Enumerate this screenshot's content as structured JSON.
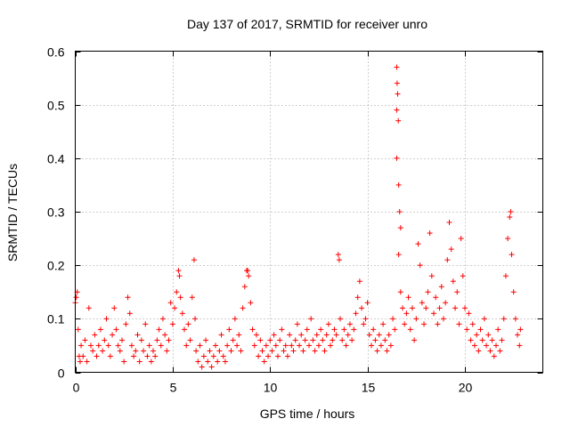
{
  "chart_data": {
    "type": "scatter",
    "title": "Day 137 of 2017, SRMTID for receiver unro",
    "xlabel": "GPS time / hours",
    "ylabel": "SRMTID / TECUs",
    "xlim": [
      0,
      24
    ],
    "ylim": [
      0,
      0.6
    ],
    "grid": true,
    "marker": "plus",
    "marker_color": "#ff0000",
    "x_ticks": [
      0,
      5,
      10,
      15,
      20
    ],
    "x_tick_labels": [
      "0",
      "5",
      "10",
      "15",
      "20"
    ],
    "y_ticks": [
      0,
      0.1,
      0.2,
      0.3,
      0.4,
      0.5,
      0.6
    ],
    "y_tick_labels": [
      "0",
      "0.1",
      "0.2",
      "0.3",
      "0.4",
      "0.5",
      "0.6"
    ],
    "series": [
      {
        "name": "SRMTID",
        "points": [
          [
            0.0,
            0.13
          ],
          [
            0.05,
            0.14
          ],
          [
            0.1,
            0.15
          ],
          [
            0.15,
            0.08
          ],
          [
            0.2,
            0.03
          ],
          [
            0.25,
            0.02
          ],
          [
            0.3,
            0.05
          ],
          [
            0.4,
            0.03
          ],
          [
            0.5,
            0.06
          ],
          [
            0.6,
            0.02
          ],
          [
            0.7,
            0.12
          ],
          [
            0.8,
            0.05
          ],
          [
            0.9,
            0.04
          ],
          [
            1.0,
            0.07
          ],
          [
            1.1,
            0.03
          ],
          [
            1.2,
            0.05
          ],
          [
            1.3,
            0.08
          ],
          [
            1.4,
            0.04
          ],
          [
            1.5,
            0.06
          ],
          [
            1.6,
            0.1
          ],
          [
            1.7,
            0.05
          ],
          [
            1.8,
            0.03
          ],
          [
            1.9,
            0.07
          ],
          [
            2.0,
            0.12
          ],
          [
            2.1,
            0.08
          ],
          [
            2.2,
            0.05
          ],
          [
            2.3,
            0.04
          ],
          [
            2.4,
            0.06
          ],
          [
            2.5,
            0.02
          ],
          [
            2.6,
            0.09
          ],
          [
            2.7,
            0.14
          ],
          [
            2.8,
            0.11
          ],
          [
            2.9,
            0.05
          ],
          [
            3.0,
            0.03
          ],
          [
            3.1,
            0.04
          ],
          [
            3.2,
            0.07
          ],
          [
            3.3,
            0.02
          ],
          [
            3.4,
            0.06
          ],
          [
            3.5,
            0.04
          ],
          [
            3.6,
            0.09
          ],
          [
            3.7,
            0.03
          ],
          [
            3.8,
            0.05
          ],
          [
            3.9,
            0.02
          ],
          [
            4.0,
            0.04
          ],
          [
            4.1,
            0.03
          ],
          [
            4.2,
            0.06
          ],
          [
            4.3,
            0.08
          ],
          [
            4.4,
            0.05
          ],
          [
            4.5,
            0.1
          ],
          [
            4.6,
            0.07
          ],
          [
            4.7,
            0.04
          ],
          [
            4.8,
            0.06
          ],
          [
            4.9,
            0.13
          ],
          [
            5.0,
            0.09
          ],
          [
            5.1,
            0.12
          ],
          [
            5.2,
            0.15
          ],
          [
            5.3,
            0.19
          ],
          [
            5.35,
            0.18
          ],
          [
            5.4,
            0.14
          ],
          [
            5.5,
            0.11
          ],
          [
            5.6,
            0.08
          ],
          [
            5.7,
            0.05
          ],
          [
            5.8,
            0.09
          ],
          [
            5.9,
            0.06
          ],
          [
            6.0,
            0.14
          ],
          [
            6.1,
            0.21
          ],
          [
            6.15,
            0.1
          ],
          [
            6.2,
            0.04
          ],
          [
            6.3,
            0.02
          ],
          [
            6.4,
            0.05
          ],
          [
            6.5,
            0.01
          ],
          [
            6.6,
            0.03
          ],
          [
            6.7,
            0.06
          ],
          [
            6.8,
            0.02
          ],
          [
            6.9,
            0.04
          ],
          [
            7.0,
            0.01
          ],
          [
            7.1,
            0.03
          ],
          [
            7.2,
            0.05
          ],
          [
            7.3,
            0.02
          ],
          [
            7.4,
            0.04
          ],
          [
            7.5,
            0.07
          ],
          [
            7.6,
            0.03
          ],
          [
            7.7,
            0.02
          ],
          [
            7.8,
            0.05
          ],
          [
            7.9,
            0.08
          ],
          [
            8.0,
            0.04
          ],
          [
            8.1,
            0.06
          ],
          [
            8.2,
            0.1
          ],
          [
            8.3,
            0.05
          ],
          [
            8.4,
            0.07
          ],
          [
            8.5,
            0.04
          ],
          [
            8.6,
            0.12
          ],
          [
            8.7,
            0.16
          ],
          [
            8.8,
            0.19
          ],
          [
            8.85,
            0.19
          ],
          [
            8.9,
            0.18
          ],
          [
            9.0,
            0.13
          ],
          [
            9.1,
            0.08
          ],
          [
            9.2,
            0.05
          ],
          [
            9.3,
            0.07
          ],
          [
            9.4,
            0.03
          ],
          [
            9.5,
            0.06
          ],
          [
            9.6,
            0.04
          ],
          [
            9.7,
            0.02
          ],
          [
            9.8,
            0.05
          ],
          [
            9.9,
            0.03
          ],
          [
            10.0,
            0.06
          ],
          [
            10.1,
            0.04
          ],
          [
            10.2,
            0.07
          ],
          [
            10.3,
            0.05
          ],
          [
            10.4,
            0.03
          ],
          [
            10.5,
            0.06
          ],
          [
            10.6,
            0.08
          ],
          [
            10.7,
            0.04
          ],
          [
            10.8,
            0.05
          ],
          [
            10.9,
            0.03
          ],
          [
            11.0,
            0.07
          ],
          [
            11.1,
            0.05
          ],
          [
            11.2,
            0.04
          ],
          [
            11.3,
            0.06
          ],
          [
            11.4,
            0.09
          ],
          [
            11.5,
            0.05
          ],
          [
            11.6,
            0.07
          ],
          [
            11.7,
            0.04
          ],
          [
            11.8,
            0.06
          ],
          [
            11.9,
            0.08
          ],
          [
            12.0,
            0.05
          ],
          [
            12.1,
            0.1
          ],
          [
            12.2,
            0.06
          ],
          [
            12.3,
            0.04
          ],
          [
            12.4,
            0.07
          ],
          [
            12.5,
            0.05
          ],
          [
            12.6,
            0.08
          ],
          [
            12.7,
            0.06
          ],
          [
            12.8,
            0.04
          ],
          [
            12.9,
            0.07
          ],
          [
            13.0,
            0.09
          ],
          [
            13.1,
            0.05
          ],
          [
            13.2,
            0.06
          ],
          [
            13.3,
            0.08
          ],
          [
            13.4,
            0.07
          ],
          [
            13.5,
            0.22
          ],
          [
            13.55,
            0.21
          ],
          [
            13.6,
            0.1
          ],
          [
            13.7,
            0.06
          ],
          [
            13.8,
            0.08
          ],
          [
            13.9,
            0.05
          ],
          [
            14.0,
            0.07
          ],
          [
            14.1,
            0.09
          ],
          [
            14.2,
            0.06
          ],
          [
            14.3,
            0.08
          ],
          [
            14.4,
            0.11
          ],
          [
            14.5,
            0.14
          ],
          [
            14.6,
            0.17
          ],
          [
            14.7,
            0.12
          ],
          [
            14.8,
            0.09
          ],
          [
            14.9,
            0.1
          ],
          [
            15.0,
            0.13
          ],
          [
            15.1,
            0.07
          ],
          [
            15.2,
            0.05
          ],
          [
            15.3,
            0.08
          ],
          [
            15.4,
            0.06
          ],
          [
            15.5,
            0.04
          ],
          [
            15.6,
            0.07
          ],
          [
            15.7,
            0.05
          ],
          [
            15.8,
            0.09
          ],
          [
            15.9,
            0.06
          ],
          [
            16.0,
            0.04
          ],
          [
            16.1,
            0.07
          ],
          [
            16.2,
            0.05
          ],
          [
            16.3,
            0.1
          ],
          [
            16.4,
            0.08
          ],
          [
            16.5,
            0.57
          ],
          [
            16.52,
            0.54
          ],
          [
            16.55,
            0.52
          ],
          [
            16.5,
            0.49
          ],
          [
            16.58,
            0.47
          ],
          [
            16.5,
            0.4
          ],
          [
            16.6,
            0.35
          ],
          [
            16.65,
            0.3
          ],
          [
            16.7,
            0.27
          ],
          [
            16.6,
            0.22
          ],
          [
            16.7,
            0.15
          ],
          [
            16.8,
            0.12
          ],
          [
            16.9,
            0.09
          ],
          [
            17.0,
            0.11
          ],
          [
            17.1,
            0.14
          ],
          [
            17.2,
            0.08
          ],
          [
            17.3,
            0.12
          ],
          [
            17.4,
            0.06
          ],
          [
            17.5,
            0.1
          ],
          [
            17.6,
            0.24
          ],
          [
            17.7,
            0.2
          ],
          [
            17.8,
            0.13
          ],
          [
            17.9,
            0.09
          ],
          [
            18.0,
            0.12
          ],
          [
            18.1,
            0.15
          ],
          [
            18.2,
            0.26
          ],
          [
            18.3,
            0.18
          ],
          [
            18.4,
            0.11
          ],
          [
            18.5,
            0.14
          ],
          [
            18.6,
            0.09
          ],
          [
            18.7,
            0.12
          ],
          [
            18.8,
            0.16
          ],
          [
            18.9,
            0.1
          ],
          [
            19.0,
            0.13
          ],
          [
            19.1,
            0.21
          ],
          [
            19.2,
            0.28
          ],
          [
            19.3,
            0.23
          ],
          [
            19.4,
            0.17
          ],
          [
            19.5,
            0.12
          ],
          [
            19.6,
            0.15
          ],
          [
            19.7,
            0.09
          ],
          [
            19.8,
            0.25
          ],
          [
            19.9,
            0.18
          ],
          [
            20.0,
            0.12
          ],
          [
            20.1,
            0.08
          ],
          [
            20.2,
            0.11
          ],
          [
            20.3,
            0.06
          ],
          [
            20.4,
            0.09
          ],
          [
            20.5,
            0.05
          ],
          [
            20.6,
            0.07
          ],
          [
            20.7,
            0.04
          ],
          [
            20.8,
            0.08
          ],
          [
            20.9,
            0.06
          ],
          [
            21.0,
            0.1
          ],
          [
            21.1,
            0.05
          ],
          [
            21.2,
            0.07
          ],
          [
            21.3,
            0.04
          ],
          [
            21.4,
            0.06
          ],
          [
            21.5,
            0.03
          ],
          [
            21.6,
            0.05
          ],
          [
            21.7,
            0.08
          ],
          [
            21.8,
            0.04
          ],
          [
            21.9,
            0.06
          ],
          [
            22.0,
            0.1
          ],
          [
            22.1,
            0.18
          ],
          [
            22.2,
            0.25
          ],
          [
            22.3,
            0.29
          ],
          [
            22.35,
            0.3
          ],
          [
            22.4,
            0.22
          ],
          [
            22.5,
            0.15
          ],
          [
            22.6,
            0.1
          ],
          [
            22.7,
            0.07
          ],
          [
            22.8,
            0.05
          ],
          [
            22.85,
            0.08
          ]
        ]
      }
    ]
  }
}
